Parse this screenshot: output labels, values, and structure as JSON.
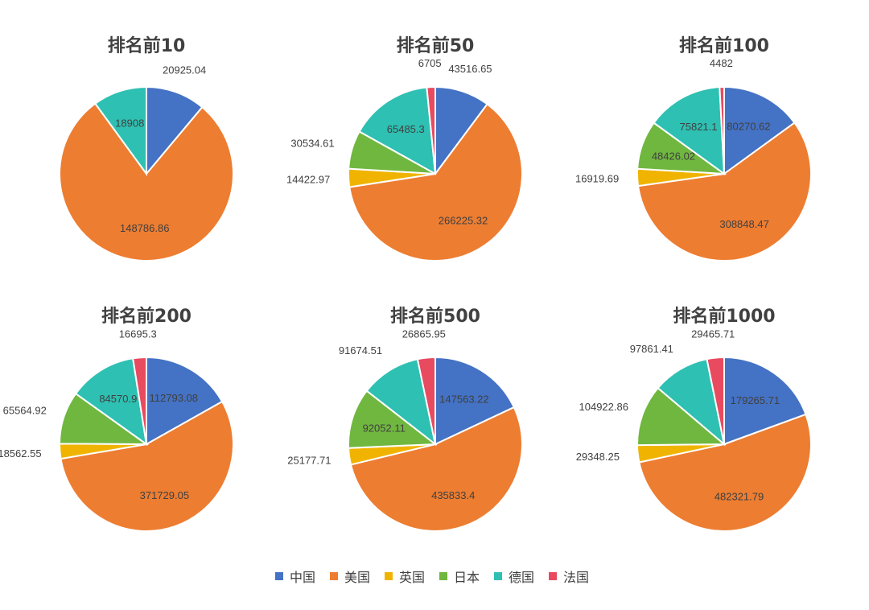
{
  "chart_data": [
    {
      "type": "pie",
      "title": "排名前10",
      "categories": [
        "中国",
        "美国",
        "英国",
        "日本",
        "德国",
        "法国"
      ],
      "values": [
        20925.04,
        148786.86,
        null,
        null,
        18908,
        null
      ],
      "labels": [
        "20925.04",
        "148786.86",
        null,
        null,
        "18908",
        null
      ]
    },
    {
      "type": "pie",
      "title": "排名前50",
      "categories": [
        "中国",
        "美国",
        "英国",
        "日本",
        "德国",
        "法国"
      ],
      "values": [
        43516.65,
        266225.32,
        14422.97,
        30534.61,
        65485.3,
        6705
      ],
      "labels": [
        "43516.65",
        "266225.32",
        "14422.97",
        "30534.61",
        "65485.3",
        "6705"
      ]
    },
    {
      "type": "pie",
      "title": "排名前100",
      "categories": [
        "中国",
        "美国",
        "英国",
        "日本",
        "德国",
        "法国"
      ],
      "values": [
        80270.62,
        308848.47,
        16919.69,
        48426.02,
        75821.1,
        4482
      ],
      "labels": [
        "80270.62",
        "308848.47",
        "16919.69",
        "48426.02",
        "75821.1",
        "4482"
      ]
    },
    {
      "type": "pie",
      "title": "排名前200",
      "categories": [
        "中国",
        "美国",
        "英国",
        "日本",
        "德国",
        "法国"
      ],
      "values": [
        112793.08,
        371729.05,
        18562.55,
        65564.92,
        84570.9,
        16695.3
      ],
      "labels": [
        "112793.08",
        "371729.05",
        "18562.55",
        "65564.92",
        "84570.9",
        "16695.3"
      ]
    },
    {
      "type": "pie",
      "title": "排名前500",
      "categories": [
        "中国",
        "美国",
        "英国",
        "日本",
        "德国",
        "法国"
      ],
      "values": [
        147563.22,
        435833.4,
        25177.71,
        92052.11,
        91674.51,
        26865.95
      ],
      "labels": [
        "147563.22",
        "435833.4",
        "25177.71",
        "92052.11",
        "91674.51",
        "26865.95"
      ]
    },
    {
      "type": "pie",
      "title": "排名前1000",
      "categories": [
        "中国",
        "美国",
        "英国",
        "日本",
        "德国",
        "法国"
      ],
      "values": [
        179265.71,
        482321.79,
        29348.25,
        104922.86,
        97861.41,
        29465.71
      ],
      "labels": [
        "179265.71",
        "482321.79",
        "29348.25",
        "104922.86",
        "97861.41",
        "29465.71"
      ]
    }
  ],
  "legend": {
    "position": "bottom",
    "items": [
      {
        "name": "中国",
        "color": "#4472C4"
      },
      {
        "name": "美国",
        "color": "#ED7D31"
      },
      {
        "name": "英国",
        "color": "#F0B400"
      },
      {
        "name": "日本",
        "color": "#70B73F"
      },
      {
        "name": "德国",
        "color": "#2EC0B2"
      },
      {
        "name": "法国",
        "color": "#E84A5F"
      }
    ]
  }
}
